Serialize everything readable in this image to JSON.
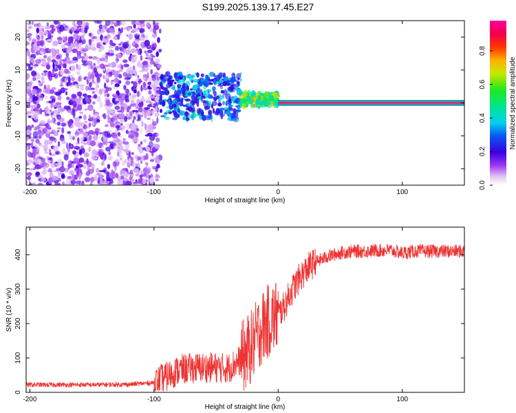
{
  "title": "S199.2025.139.17.45.E27",
  "chart_data": [
    {
      "type": "heatmap",
      "name": "spectrogram",
      "xlabel": "Height of straight line (km)",
      "ylabel": "Frequency (Hz)",
      "xlim": [
        -203,
        150
      ],
      "ylim": [
        -25,
        25
      ],
      "xticks": [
        -200,
        -100,
        0,
        100
      ],
      "yticks": [
        -20,
        -10,
        0,
        10,
        20
      ],
      "colorbar": {
        "label": "Normalized spectral amplitude",
        "range": [
          0.0,
          0.98
        ],
        "ticks": [
          0.0,
          0.2,
          0.4,
          0.6,
          0.8
        ],
        "tick_labels": [
          "0.0",
          "0.2",
          "0.4",
          "0.6",
          "0.8"
        ]
      },
      "regions": [
        {
          "x": [
            -203,
            -95
          ],
          "description": "broadband noise across all frequencies",
          "amplitude": [
            0.05,
            0.2
          ]
        },
        {
          "x": [
            -95,
            -30
          ],
          "freq_center": 3,
          "freq_spread": [
            -5,
            9
          ],
          "amplitude": [
            0.2,
            0.45
          ]
        },
        {
          "x": [
            -30,
            0
          ],
          "freq_center": 1,
          "freq_spread": [
            -1,
            3
          ],
          "amplitude": [
            0.4,
            0.8
          ]
        },
        {
          "x": [
            0,
            150
          ],
          "freq_center": 0,
          "line": true,
          "amplitude": [
            0.9,
            0.98
          ]
        }
      ]
    },
    {
      "type": "line",
      "name": "snr",
      "xlabel": "Height of straight line (km)",
      "ylabel": "SNR (10 * v/v)",
      "xlim": [
        -203,
        150
      ],
      "ylim": [
        0,
        480
      ],
      "xticks": [
        -200,
        -100,
        0,
        100
      ],
      "yticks": [
        0,
        100,
        200,
        300,
        400
      ],
      "color": "#ee3333",
      "series": [
        {
          "name": "SNR",
          "x": [
            -203,
            -180,
            -150,
            -120,
            -100,
            -90,
            -80,
            -70,
            -60,
            -50,
            -40,
            -30,
            -20,
            -15,
            -10,
            -5,
            0,
            5,
            10,
            15,
            20,
            25,
            30,
            40,
            50,
            60,
            70,
            80,
            90,
            100,
            110,
            120,
            130,
            140,
            150
          ],
          "values": [
            22,
            22,
            22,
            23,
            28,
            45,
            65,
            70,
            72,
            72,
            70,
            95,
            140,
            180,
            200,
            215,
            225,
            250,
            290,
            320,
            345,
            365,
            378,
            395,
            405,
            410,
            410,
            412,
            413,
            405,
            410,
            410,
            410,
            410,
            410
          ]
        }
      ]
    }
  ]
}
